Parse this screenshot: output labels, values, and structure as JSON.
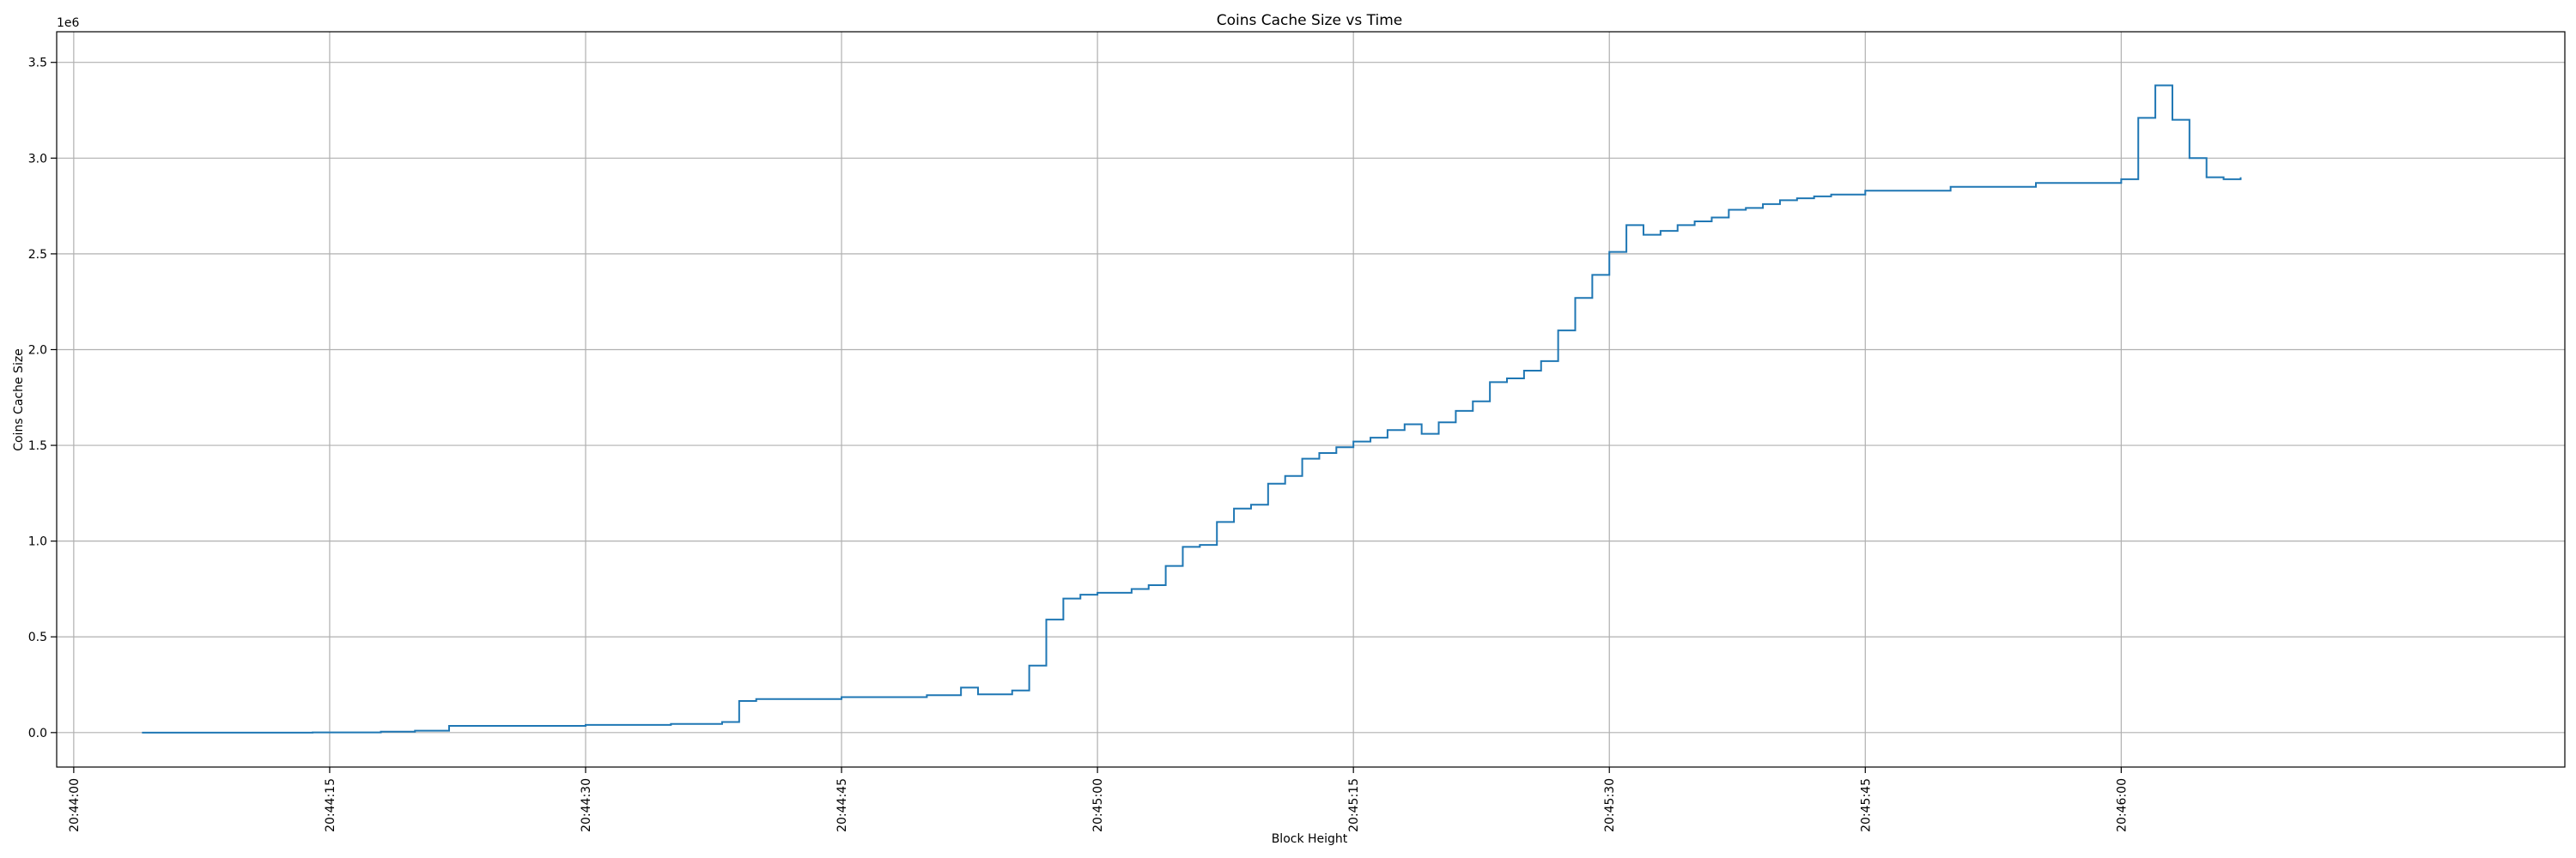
{
  "chart_data": {
    "type": "line",
    "drawstyle": "steps",
    "title": "Coins Cache Size vs Time",
    "xlabel": "Block Height",
    "ylabel": "Coins Cache Size",
    "y_offset_text": "1e6",
    "y_scale_factor": 1000000,
    "grid": true,
    "color": "#1f77b4",
    "xlim": [
      "20:43:59",
      "20:46:26"
    ],
    "ylim": [
      -180000,
      3660000
    ],
    "xticks": [
      "20:44:00",
      "20:44:15",
      "20:44:30",
      "20:44:45",
      "20:45:00",
      "20:45:15",
      "20:45:30",
      "20:45:45",
      "20:46:00"
    ],
    "yticks": [
      0,
      500000,
      1000000,
      1500000,
      2000000,
      2500000,
      3000000,
      3500000
    ],
    "ytick_labels": [
      "0.0",
      "0.5",
      "1.0",
      "1.5",
      "2.0",
      "2.5",
      "3.0",
      "3.5"
    ],
    "series": [
      {
        "x": [
          "20:44:04",
          "20:44:14",
          "20:44:18",
          "20:44:20",
          "20:44:22",
          "20:44:30",
          "20:44:35",
          "20:44:38",
          "20:44:39",
          "20:44:40",
          "20:44:45",
          "20:44:50",
          "20:44:52",
          "20:44:53",
          "20:44:55",
          "20:44:56",
          "20:44:57",
          "20:44:58",
          "20:44:59",
          "20:45:00",
          "20:45:02",
          "20:45:03",
          "20:45:04",
          "20:45:05",
          "20:45:06",
          "20:45:07",
          "20:45:08",
          "20:45:09",
          "20:45:10",
          "20:45:11",
          "20:45:12",
          "20:45:13",
          "20:45:14",
          "20:45:15",
          "20:45:16",
          "20:45:17",
          "20:45:18",
          "20:45:19",
          "20:45:20",
          "20:45:21",
          "20:45:22",
          "20:45:23",
          "20:45:24",
          "20:45:25",
          "20:45:26",
          "20:45:27",
          "20:45:28",
          "20:45:29",
          "20:45:30",
          "20:45:31",
          "20:45:32",
          "20:45:33",
          "20:45:34",
          "20:45:35",
          "20:45:36",
          "20:45:37",
          "20:45:38",
          "20:45:39",
          "20:45:40",
          "20:45:41",
          "20:45:42",
          "20:45:43",
          "20:45:45",
          "20:45:50",
          "20:45:55",
          "20:46:00",
          "20:46:01",
          "20:46:02",
          "20:46:03",
          "20:46:04",
          "20:46:05",
          "20:46:06",
          "20:46:07"
        ],
        "y": [
          0,
          1000,
          5000,
          10000,
          35000,
          40000,
          45000,
          55000,
          165000,
          175000,
          185000,
          195000,
          235000,
          200000,
          220000,
          350000,
          590000,
          700000,
          720000,
          730000,
          750000,
          770000,
          870000,
          970000,
          980000,
          1100000,
          1170000,
          1190000,
          1300000,
          1340000,
          1430000,
          1460000,
          1490000,
          1520000,
          1540000,
          1580000,
          1610000,
          1560000,
          1620000,
          1680000,
          1730000,
          1830000,
          1850000,
          1890000,
          1940000,
          2100000,
          2270000,
          2390000,
          2510000,
          2650000,
          2600000,
          2620000,
          2650000,
          2670000,
          2690000,
          2730000,
          2740000,
          2760000,
          2780000,
          2790000,
          2800000,
          2810000,
          2830000,
          2850000,
          2870000,
          2890000,
          3210000,
          3380000,
          3200000,
          3000000,
          2900000,
          2890000,
          2900000
        ]
      }
    ]
  }
}
